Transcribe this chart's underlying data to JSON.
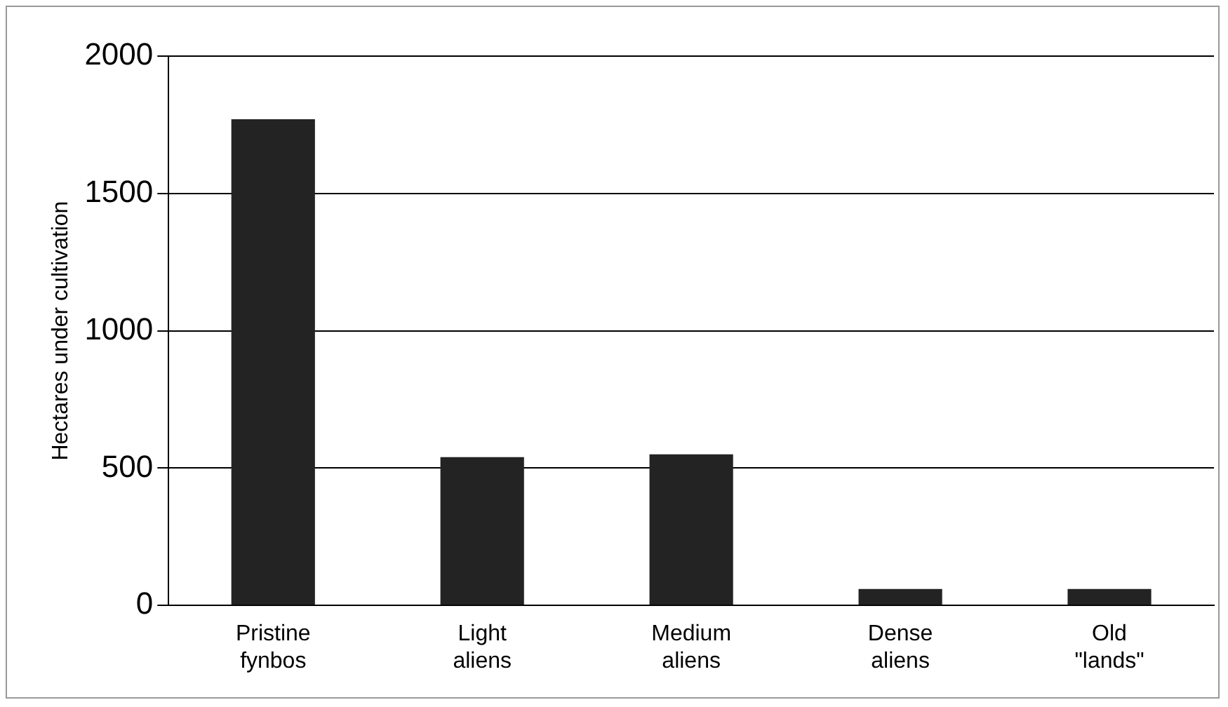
{
  "chart_data": {
    "type": "bar",
    "ylabel": "Hectares under cultivation",
    "categories": [
      "Pristine fynbos",
      "Light aliens",
      "Medium aliens",
      "Dense aliens",
      "Old \"lands\""
    ],
    "values": [
      1770,
      540,
      550,
      60,
      60
    ],
    "color": "#232323",
    "ylim": [
      0,
      2000
    ],
    "yticks": [
      0,
      500,
      1000,
      1500,
      2000
    ],
    "grid": "y",
    "legend": false
  }
}
